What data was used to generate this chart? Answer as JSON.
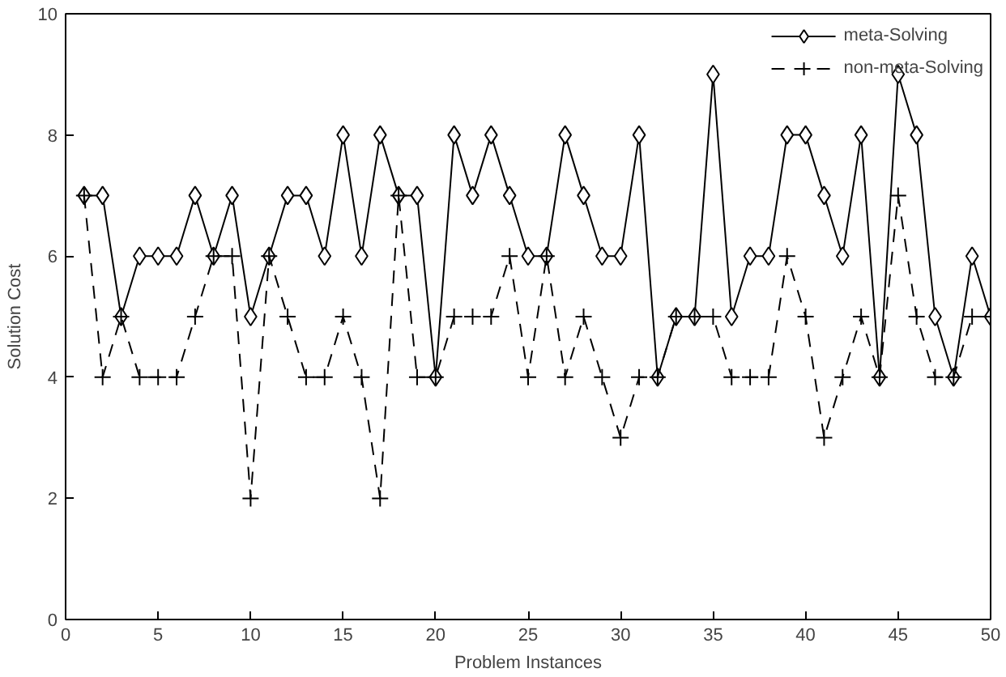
{
  "chart_data": {
    "type": "line",
    "xlabel": "Problem Instances",
    "ylabel": "Solution Cost",
    "x": [
      1,
      2,
      3,
      4,
      5,
      6,
      7,
      8,
      9,
      10,
      11,
      12,
      13,
      14,
      15,
      16,
      17,
      18,
      19,
      20,
      21,
      22,
      23,
      24,
      25,
      26,
      27,
      28,
      29,
      30,
      31,
      32,
      33,
      34,
      35,
      36,
      37,
      38,
      39,
      40,
      41,
      42,
      43,
      44,
      45,
      46,
      47,
      48,
      49,
      50
    ],
    "series": [
      {
        "name": "meta-Solving",
        "color": "#000000",
        "marker": "diamond",
        "line_style": "solid",
        "values": [
          7,
          7,
          5,
          6,
          6,
          6,
          7,
          6,
          7,
          5,
          6,
          7,
          7,
          6,
          8,
          6,
          8,
          7,
          7,
          4,
          8,
          7,
          8,
          7,
          6,
          6,
          8,
          7,
          6,
          6,
          8,
          4,
          5,
          5,
          9,
          5,
          6,
          6,
          8,
          8,
          7,
          6,
          8,
          4,
          9,
          8,
          5,
          4,
          6,
          5
        ]
      },
      {
        "name": "non-meta-Solving",
        "color": "#000000",
        "marker": "cross",
        "line_style": "dashed",
        "values": [
          7,
          4,
          5,
          4,
          4,
          4,
          5,
          6,
          6,
          2,
          6,
          5,
          4,
          4,
          5,
          4,
          2,
          7,
          4,
          4,
          5,
          5,
          5,
          6,
          4,
          6,
          4,
          5,
          4,
          3,
          4,
          4,
          5,
          5,
          5,
          4,
          4,
          4,
          6,
          5,
          3,
          4,
          5,
          4,
          7,
          5,
          4,
          4,
          5,
          5
        ]
      }
    ],
    "xlim": [
      0,
      50
    ],
    "ylim": [
      0,
      10
    ],
    "xticks": [
      0,
      5,
      10,
      15,
      20,
      25,
      30,
      35,
      40,
      45,
      50
    ],
    "yticks": [
      0,
      2,
      4,
      6,
      8,
      10
    ],
    "grid": false,
    "legend": "top right"
  }
}
